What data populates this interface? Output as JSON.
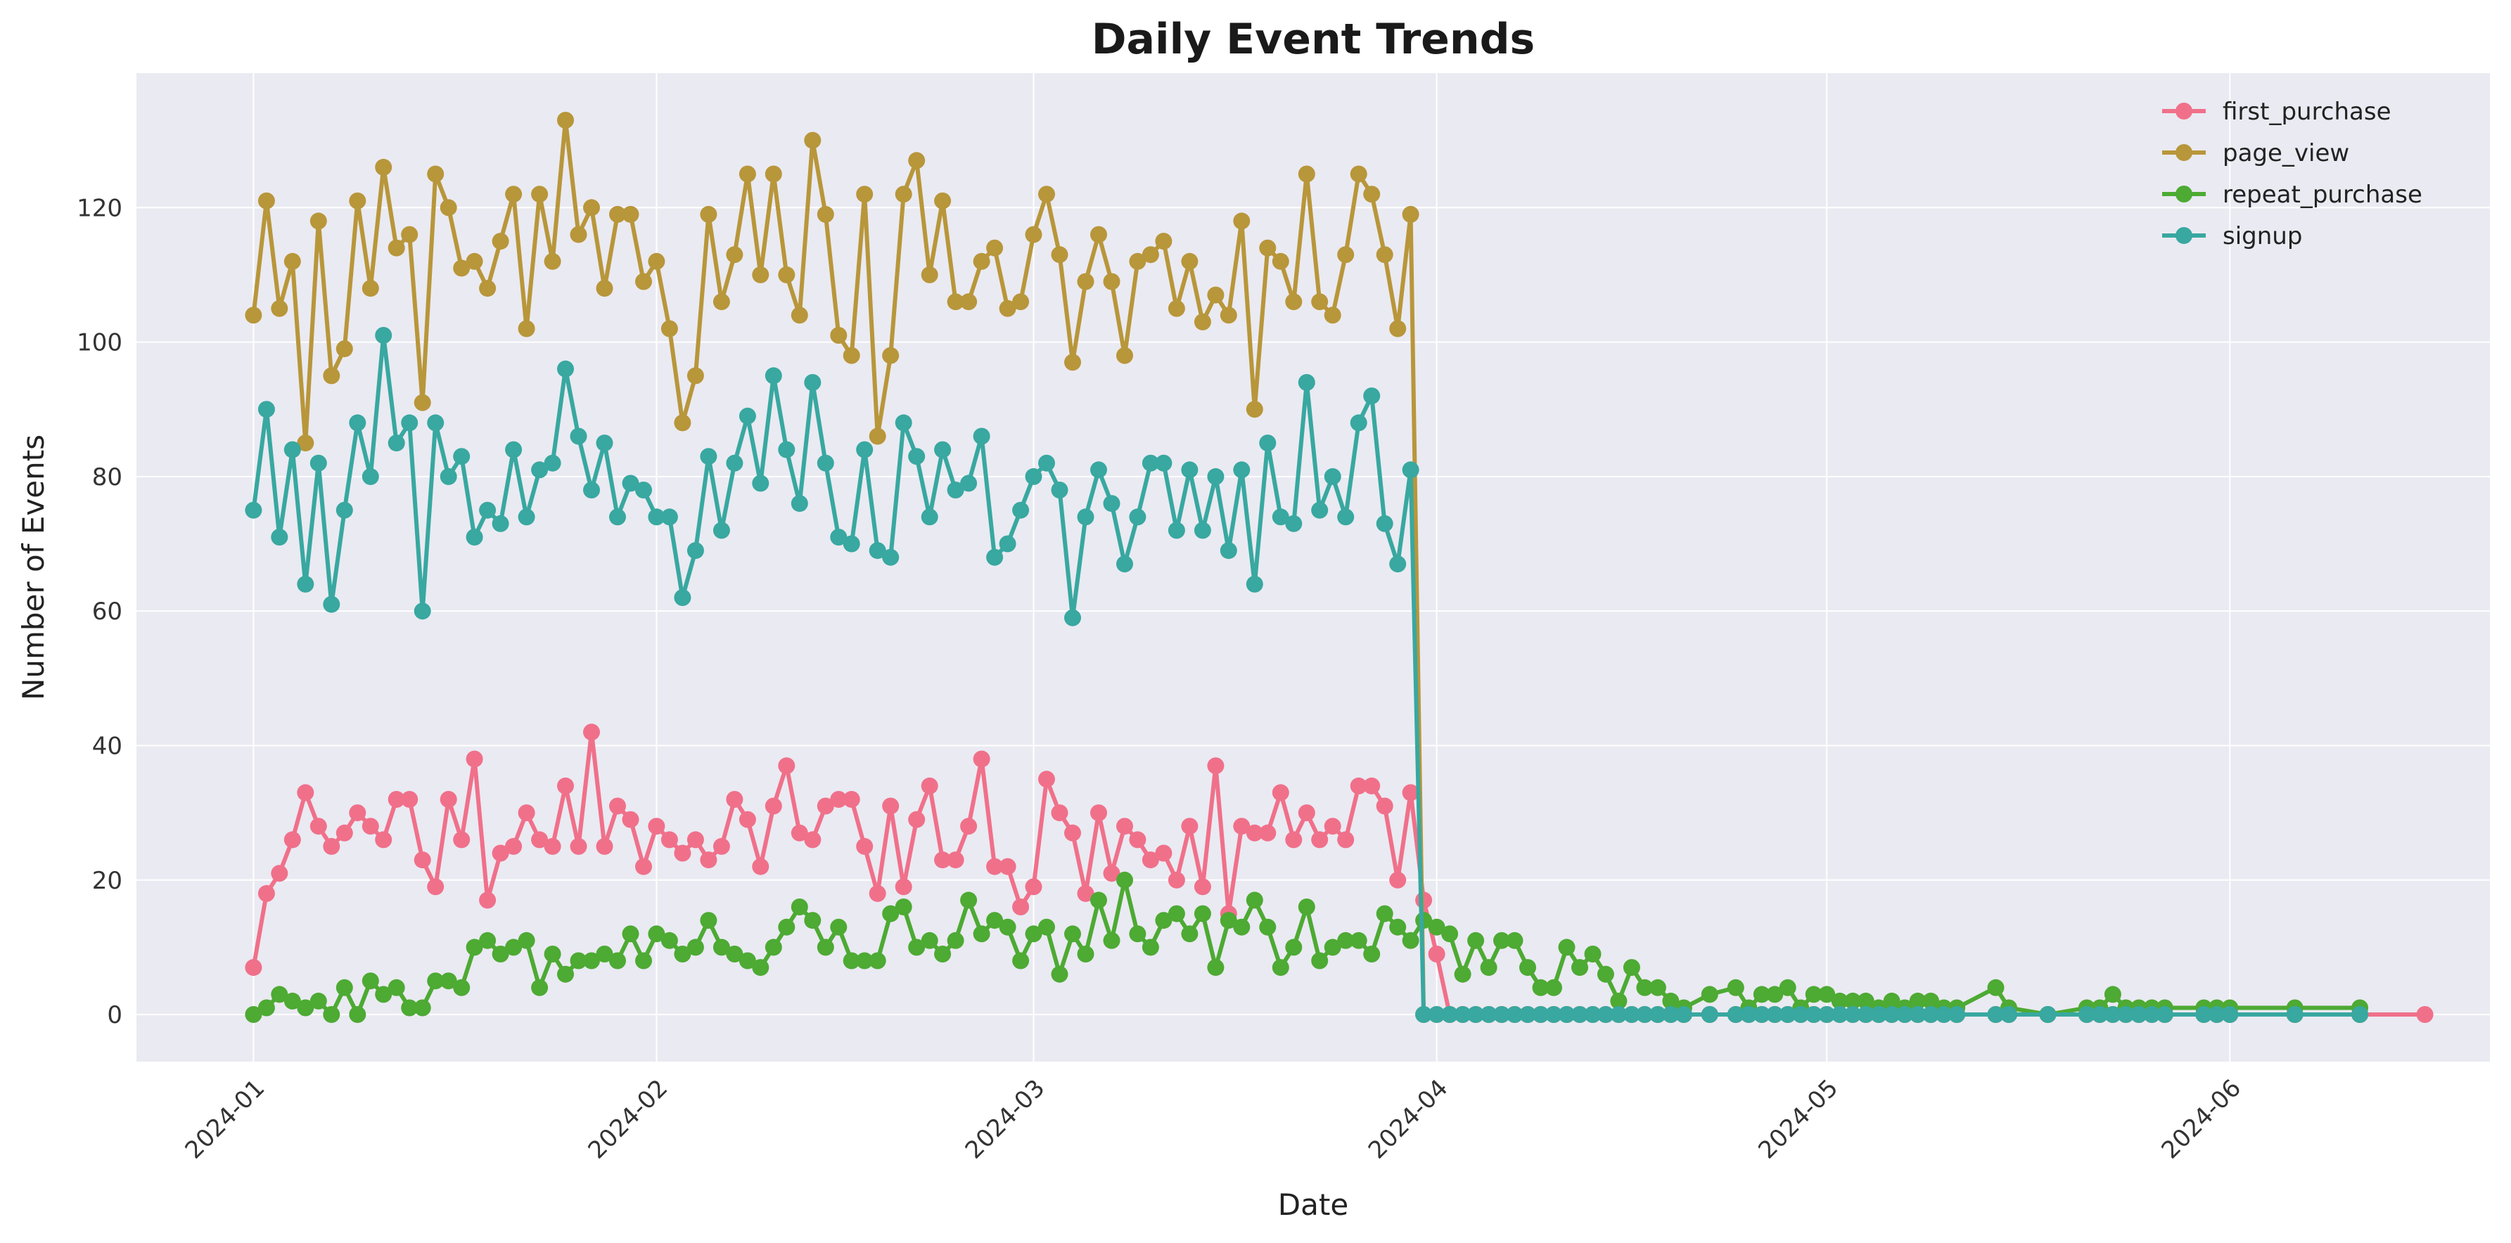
{
  "chart_data": {
    "type": "line",
    "title": "Daily Event Trends",
    "xlabel": "Date",
    "ylabel": "Number of Events",
    "x_tick_labels": [
      "2024-01",
      "2024-02",
      "2024-03",
      "2024-04",
      "2024-05",
      "2024-06"
    ],
    "y_tick_labels": [
      "0",
      "20",
      "40",
      "60",
      "80",
      "100",
      "120"
    ],
    "xlim": [
      "2023-12-23",
      "2024-06-21"
    ],
    "ylim": [
      -7,
      140
    ],
    "grid": true,
    "legend_position": "top-right",
    "dense_dates_start": "2024-01-01",
    "dense_dates_end": "2024-04-01",
    "sparse_dates": [
      "2024-04-02",
      "2024-04-03",
      "2024-04-04",
      "2024-04-05",
      "2024-04-06",
      "2024-04-07",
      "2024-04-08",
      "2024-04-09",
      "2024-04-10",
      "2024-04-11",
      "2024-04-12",
      "2024-04-13",
      "2024-04-14",
      "2024-04-15",
      "2024-04-16",
      "2024-04-17",
      "2024-04-18",
      "2024-04-19",
      "2024-04-20",
      "2024-04-22",
      "2024-04-24",
      "2024-04-25",
      "2024-04-26",
      "2024-04-27",
      "2024-04-28",
      "2024-04-29",
      "2024-04-30",
      "2024-05-01",
      "2024-05-02",
      "2024-05-03",
      "2024-05-04",
      "2024-05-05",
      "2024-05-06",
      "2024-05-07",
      "2024-05-08",
      "2024-05-09",
      "2024-05-10",
      "2024-05-11",
      "2024-05-14",
      "2024-05-15",
      "2024-05-18",
      "2024-05-21",
      "2024-05-22",
      "2024-05-23",
      "2024-05-24",
      "2024-05-25",
      "2024-05-26",
      "2024-05-27",
      "2024-05-30",
      "2024-05-31",
      "2024-06-01",
      "2024-06-06",
      "2024-06-11",
      "2024-06-16"
    ],
    "series": [
      {
        "name": "first_purchase",
        "color": "#f0708a",
        "values": [
          7,
          18,
          21,
          26,
          33,
          28,
          25,
          27,
          30,
          28,
          26,
          32,
          32,
          23,
          19,
          32,
          26,
          38,
          17,
          24,
          25,
          30,
          26,
          25,
          34,
          25,
          42,
          25,
          31,
          29,
          22,
          28,
          26,
          24,
          26,
          23,
          25,
          32,
          29,
          22,
          31,
          37,
          27,
          26,
          31,
          32,
          32,
          25,
          18,
          31,
          19,
          29,
          34,
          23,
          23,
          28,
          38,
          22,
          22,
          16,
          19,
          35,
          30,
          27,
          18,
          30,
          21,
          28,
          26,
          23,
          24,
          20,
          28,
          19,
          37,
          15,
          28,
          27,
          27,
          33,
          26,
          30,
          26,
          28,
          26,
          34,
          34,
          31,
          20,
          33,
          17,
          9,
          0,
          0,
          0,
          0,
          0,
          0,
          0,
          0,
          0,
          0,
          0,
          0,
          0,
          0,
          0,
          0,
          0,
          0,
          0,
          0,
          0,
          0,
          0,
          0,
          0,
          0,
          0,
          0,
          0,
          0,
          0,
          0,
          0,
          0,
          0,
          0,
          0,
          0,
          0,
          0,
          0,
          0,
          0,
          0,
          0,
          0,
          0,
          0,
          0,
          0,
          0,
          0,
          0,
          0
        ]
      },
      {
        "name": "page_view",
        "color": "#b8963a",
        "values": [
          104,
          121,
          105,
          112,
          85,
          118,
          95,
          99,
          121,
          108,
          126,
          114,
          116,
          91,
          125,
          120,
          111,
          112,
          108,
          115,
          122,
          102,
          122,
          112,
          133,
          116,
          120,
          108,
          119,
          119,
          109,
          112,
          102,
          88,
          95,
          119,
          106,
          113,
          125,
          110,
          125,
          110,
          104,
          130,
          119,
          101,
          98,
          122,
          86,
          98,
          122,
          127,
          110,
          121,
          106,
          106,
          112,
          114,
          105,
          106,
          116,
          122,
          113,
          97,
          109,
          116,
          109,
          98,
          112,
          113,
          115,
          105,
          112,
          103,
          107,
          104,
          118,
          90,
          114,
          112,
          106,
          125,
          106,
          104,
          113,
          125,
          122,
          113,
          102,
          119,
          0,
          0,
          0,
          0,
          0,
          0,
          0,
          0,
          0,
          0,
          0,
          0,
          0,
          0,
          0,
          0,
          0,
          0,
          0,
          0,
          0,
          0,
          0,
          0,
          0,
          0,
          0,
          0,
          0,
          0,
          0,
          0,
          0,
          0,
          0,
          0,
          0,
          0,
          0,
          0,
          0,
          0,
          0,
          0,
          0,
          0,
          0,
          0,
          0,
          0,
          0,
          0,
          0,
          0,
          0
        ]
      },
      {
        "name": "repeat_purchase",
        "color": "#4daa33",
        "values": [
          0,
          1,
          3,
          2,
          1,
          2,
          0,
          4,
          0,
          5,
          3,
          4,
          1,
          1,
          5,
          5,
          4,
          10,
          11,
          9,
          10,
          11,
          4,
          9,
          6,
          8,
          8,
          9,
          8,
          12,
          8,
          12,
          11,
          9,
          10,
          14,
          10,
          9,
          8,
          7,
          10,
          13,
          16,
          14,
          10,
          13,
          8,
          8,
          8,
          15,
          16,
          10,
          11,
          9,
          11,
          17,
          12,
          14,
          13,
          8,
          12,
          13,
          6,
          12,
          9,
          17,
          11,
          20,
          12,
          10,
          14,
          15,
          12,
          15,
          7,
          14,
          13,
          17,
          13,
          7,
          10,
          16,
          8,
          10,
          11,
          11,
          9,
          15,
          13,
          11,
          14,
          13,
          12,
          6,
          11,
          7,
          11,
          11,
          7,
          4,
          4,
          10,
          7,
          9,
          6,
          2,
          7,
          4,
          4,
          2,
          1,
          3,
          4,
          1,
          3,
          3,
          4,
          1,
          3,
          3,
          2,
          2,
          2,
          1,
          2,
          1,
          2,
          2,
          1,
          1,
          4,
          1,
          0,
          1,
          1,
          3,
          1,
          1,
          1,
          1,
          1,
          1,
          1,
          1,
          1
        ]
      },
      {
        "name": "signup",
        "color": "#38a8a0",
        "values": [
          75,
          90,
          71,
          84,
          64,
          82,
          61,
          75,
          88,
          80,
          101,
          85,
          88,
          60,
          88,
          80,
          83,
          71,
          75,
          73,
          84,
          74,
          81,
          82,
          96,
          86,
          78,
          85,
          74,
          79,
          78,
          74,
          74,
          62,
          69,
          83,
          72,
          82,
          89,
          79,
          95,
          84,
          76,
          94,
          82,
          71,
          70,
          84,
          69,
          68,
          88,
          83,
          74,
          84,
          78,
          79,
          86,
          68,
          70,
          75,
          80,
          82,
          78,
          59,
          74,
          81,
          76,
          67,
          74,
          82,
          82,
          72,
          81,
          72,
          80,
          69,
          81,
          64,
          85,
          74,
          73,
          94,
          75,
          80,
          74,
          88,
          92,
          73,
          67,
          81,
          0,
          0,
          0,
          0,
          0,
          0,
          0,
          0,
          0,
          0,
          0,
          0,
          0,
          0,
          0,
          0,
          0,
          0,
          0,
          0,
          0,
          0,
          0,
          0,
          0,
          0,
          0,
          0,
          0,
          0,
          0,
          0,
          0,
          0,
          0,
          0,
          0,
          0,
          0,
          0,
          0,
          0,
          0,
          0,
          0,
          0,
          0,
          0,
          0,
          0,
          0,
          0,
          0,
          0,
          0
        ]
      }
    ]
  }
}
